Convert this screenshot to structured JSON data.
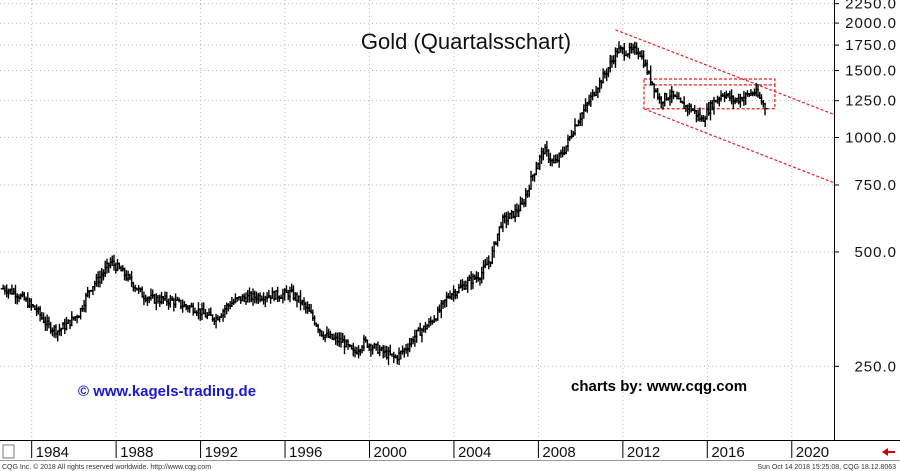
{
  "chart_data": {
    "type": "ohlc",
    "title": "Gold (Quartalsschart)",
    "y_scale": "log",
    "ylim": [
      160,
      2300
    ],
    "xlim": [
      1982.5,
      2022
    ],
    "y_ticks": [
      {
        "value": 2250,
        "label": "2250.0"
      },
      {
        "value": 2000,
        "label": "2000.0"
      },
      {
        "value": 1750,
        "label": "1750.0"
      },
      {
        "value": 1500,
        "label": "1500.0"
      },
      {
        "value": 1250,
        "label": "1250.0"
      },
      {
        "value": 1000,
        "label": "1000.0"
      },
      {
        "value": 750,
        "label": "750.0"
      },
      {
        "value": 500,
        "label": "500.0"
      },
      {
        "value": 250,
        "label": "250.0"
      }
    ],
    "x_ticks": [
      {
        "value": 1984,
        "label": "1984"
      },
      {
        "value": 1988,
        "label": "1988"
      },
      {
        "value": 1992,
        "label": "1992"
      },
      {
        "value": 1996,
        "label": "1996"
      },
      {
        "value": 2000,
        "label": "2000"
      },
      {
        "value": 2004,
        "label": "2004"
      },
      {
        "value": 2008,
        "label": "2008"
      },
      {
        "value": 2012,
        "label": "2012"
      },
      {
        "value": 2016,
        "label": "2016"
      },
      {
        "value": 2020,
        "label": "2020"
      }
    ],
    "anchors": [
      [
        1982.75,
        400
      ],
      [
        1983.25,
        390
      ],
      [
        1983.75,
        370
      ],
      [
        1984.25,
        350
      ],
      [
        1984.75,
        320
      ],
      [
        1985.25,
        310
      ],
      [
        1985.75,
        325
      ],
      [
        1986.25,
        345
      ],
      [
        1986.75,
        400
      ],
      [
        1987.25,
        430
      ],
      [
        1987.75,
        470
      ],
      [
        1988.25,
        445
      ],
      [
        1988.75,
        415
      ],
      [
        1989.25,
        385
      ],
      [
        1989.75,
        375
      ],
      [
        1990.25,
        375
      ],
      [
        1990.75,
        370
      ],
      [
        1991.25,
        360
      ],
      [
        1991.75,
        355
      ],
      [
        1992.25,
        340
      ],
      [
        1992.75,
        335
      ],
      [
        1993.25,
        360
      ],
      [
        1993.75,
        375
      ],
      [
        1994.25,
        380
      ],
      [
        1994.75,
        382
      ],
      [
        1995.25,
        385
      ],
      [
        1995.75,
        385
      ],
      [
        1996.25,
        390
      ],
      [
        1996.75,
        370
      ],
      [
        1997.25,
        340
      ],
      [
        1997.75,
        305
      ],
      [
        1998.25,
        295
      ],
      [
        1998.75,
        290
      ],
      [
        1999.25,
        270
      ],
      [
        1999.75,
        290
      ],
      [
        2000.25,
        280
      ],
      [
        2000.75,
        270
      ],
      [
        2001.25,
        263
      ],
      [
        2001.75,
        280
      ],
      [
        2002.25,
        305
      ],
      [
        2002.75,
        320
      ],
      [
        2003.25,
        345
      ],
      [
        2003.75,
        385
      ],
      [
        2004.25,
        400
      ],
      [
        2004.75,
        420
      ],
      [
        2005.25,
        435
      ],
      [
        2005.75,
        480
      ],
      [
        2006.25,
        600
      ],
      [
        2006.75,
        625
      ],
      [
        2007.25,
        665
      ],
      [
        2007.75,
        800
      ],
      [
        2008.25,
        930
      ],
      [
        2008.75,
        850
      ],
      [
        2009.25,
        930
      ],
      [
        2009.75,
        1080
      ],
      [
        2010.25,
        1200
      ],
      [
        2010.75,
        1350
      ],
      [
        2011.25,
        1500
      ],
      [
        2011.75,
        1700
      ],
      [
        2012.25,
        1680
      ],
      [
        2012.75,
        1700
      ],
      [
        2013.25,
        1450
      ],
      [
        2013.75,
        1250
      ],
      [
        2014.25,
        1300
      ],
      [
        2014.75,
        1220
      ],
      [
        2015.25,
        1190
      ],
      [
        2015.75,
        1110
      ],
      [
        2016.25,
        1230
      ],
      [
        2016.75,
        1310
      ],
      [
        2017.25,
        1250
      ],
      [
        2017.75,
        1280
      ],
      [
        2018.25,
        1320
      ],
      [
        2018.75,
        1200
      ]
    ],
    "trend_lines": [
      {
        "points": [
          [
            2011.65,
            1920
          ],
          [
            2022,
            1150
          ]
        ]
      },
      {
        "points": [
          [
            2013.0,
            1190
          ],
          [
            2022,
            760
          ]
        ]
      }
    ],
    "range_boxes": [
      {
        "x": [
          2013.0,
          2019.2
        ],
        "y": [
          1375,
          1425
        ]
      },
      {
        "x": [
          2013.0,
          2019.2
        ],
        "y": [
          1190,
          1375
        ]
      }
    ]
  },
  "credits": {
    "left": "© www.kagels-trading.de",
    "right": "charts by: www.cqg.com"
  },
  "footer": {
    "left": "CQG Inc. © 2018 All rights reserved worldwide. http://www.cqg.com",
    "right": "Sun Oct 14 2018 15:25:08, CQG 18.12.8063"
  },
  "colors": {
    "bars": "#000000",
    "trend": "#e02020",
    "credit_left": "#1a1acc",
    "scroll_arrow": "#cc0000"
  },
  "icons": {
    "scroll_left": "arrow-left-icon",
    "scroll_right": "arrow-right-icon"
  }
}
